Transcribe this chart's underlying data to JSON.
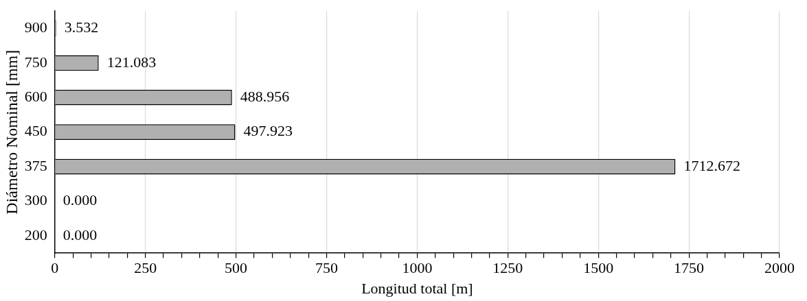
{
  "chart_data": {
    "type": "bar",
    "orientation": "horizontal",
    "xlabel": "Longitud total [m]",
    "ylabel": "Diámetro Nominal [mm]",
    "categories": [
      "900",
      "750",
      "600",
      "450",
      "375",
      "300",
      "200"
    ],
    "values": [
      3.532,
      121.083,
      488.956,
      497.923,
      1712.672,
      0,
      0
    ],
    "value_labels": [
      "3.532",
      "121.083",
      "488.956",
      "497.923",
      "1712.672",
      "0.000",
      "0.000"
    ],
    "color": "#b0b0b0",
    "xlim": [
      0,
      2000
    ],
    "xticks": [
      0,
      {
        "value": 50,
        "label": null
      },
      {
        "value": 100,
        "label": null
      },
      {
        "value": 150,
        "label": null
      },
      {
        "value": 200,
        "label": null
      },
      250,
      {
        "value": 300,
        "label": null
      },
      {
        "value": 350,
        "label": null
      },
      {
        "value": 400,
        "label": null
      },
      {
        "value": 450,
        "label": null
      },
      500,
      {
        "value": 550,
        "label": null
      },
      {
        "value": 600,
        "label": null
      },
      {
        "value": 650,
        "label": null
      },
      {
        "value": 700,
        "label": null
      },
      750,
      {
        "value": 800,
        "label": null
      },
      {
        "value": 850,
        "label": null
      },
      {
        "value": 900,
        "label": null
      },
      {
        "value": 950,
        "label": null
      },
      1000,
      {
        "value": 1050,
        "label": null
      },
      {
        "value": 1100,
        "label": null
      },
      {
        "value": 1150,
        "label": null
      },
      {
        "value": 1200,
        "label": null
      },
      1250,
      {
        "value": 1300,
        "label": null
      },
      {
        "value": 1350,
        "label": null
      },
      {
        "value": 1400,
        "label": null
      },
      {
        "value": 1450,
        "label": null
      },
      1500,
      {
        "value": 1550,
        "label": null
      },
      {
        "value": 1600,
        "label": null
      },
      {
        "value": 1650,
        "label": null
      },
      {
        "value": 1700,
        "label": null
      },
      1750,
      {
        "value": 1800,
        "label": null
      },
      {
        "value": 1850,
        "label": null
      },
      {
        "value": 1900,
        "label": null
      },
      {
        "value": 1950,
        "label": null
      },
      2000
    ],
    "grid": "x",
    "legend": false
  }
}
